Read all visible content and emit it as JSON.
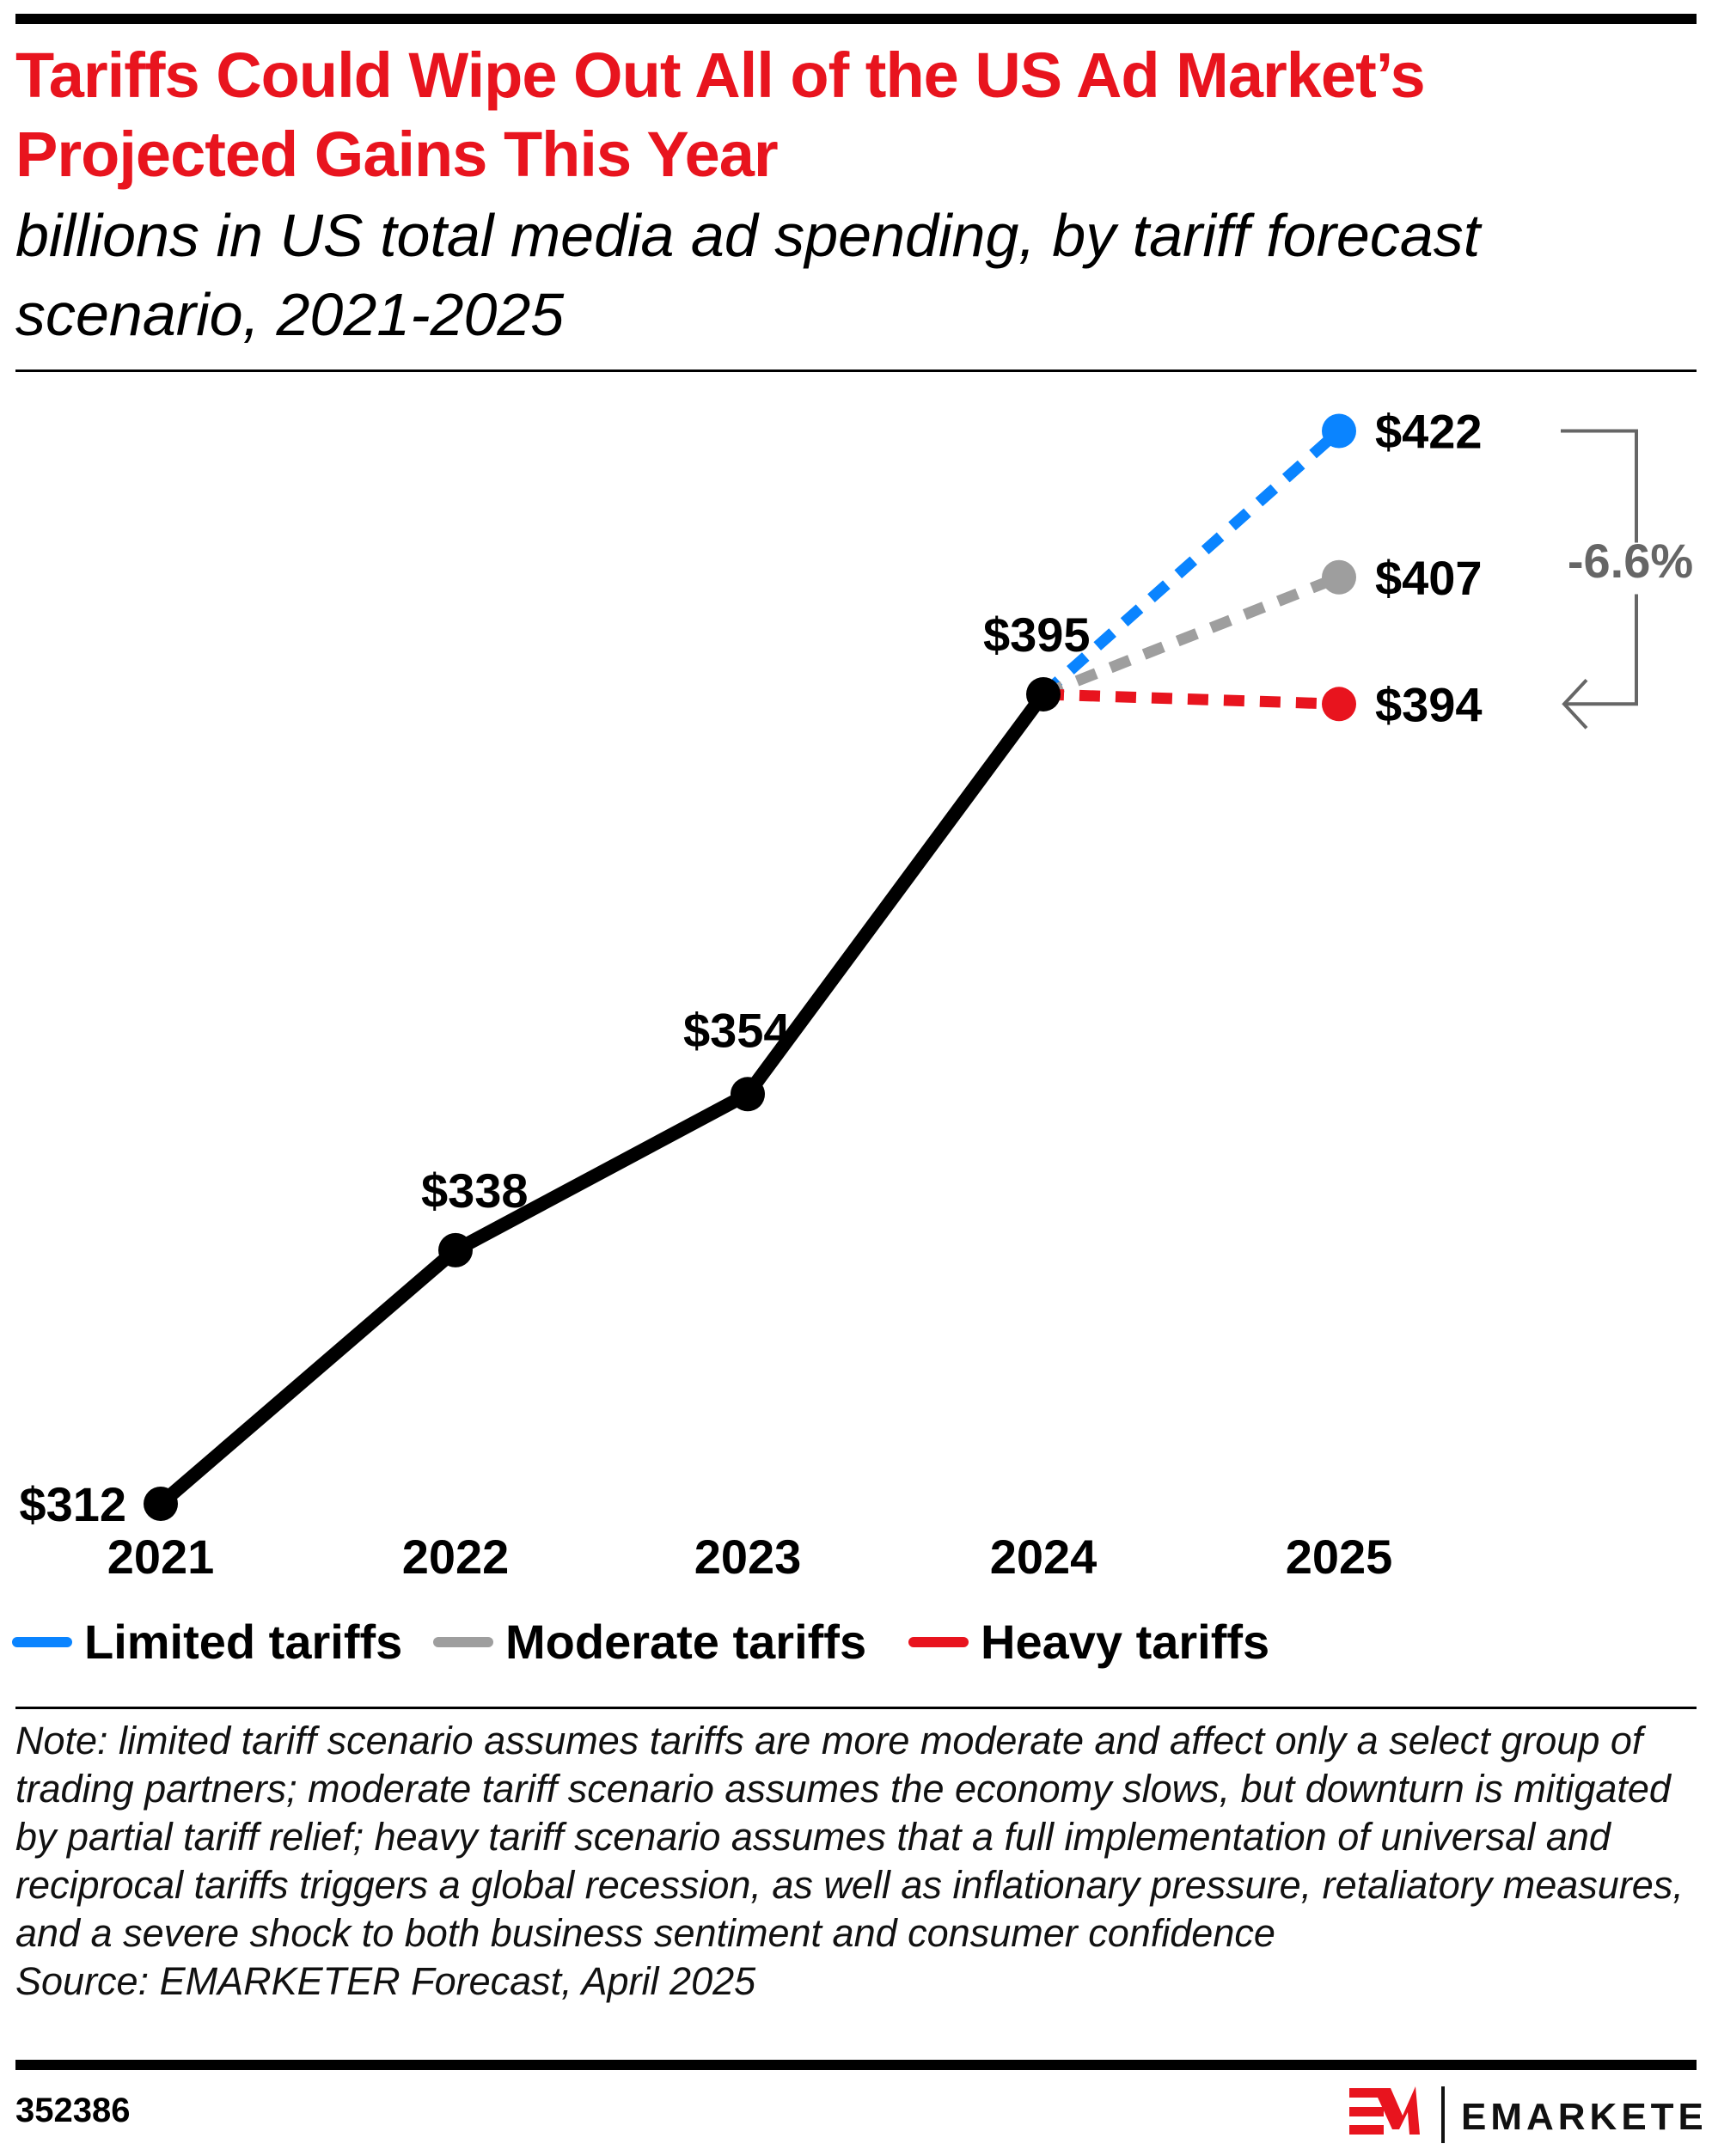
{
  "chart_data": {
    "type": "line",
    "title": "Tariffs Could Wipe Out All of the US Ad Market’s Projected Gains This Year",
    "subtitle": "billions in US total media ad spending, by tariff forecast scenario, 2021-2025",
    "categories": [
      "2021",
      "2022",
      "2023",
      "2024",
      "2025"
    ],
    "historical": {
      "x": [
        "2021",
        "2022",
        "2023",
        "2024"
      ],
      "values": [
        312,
        338,
        354,
        395
      ],
      "labels": [
        "$312",
        "$338",
        "$354",
        "$395"
      ],
      "color": "#000000"
    },
    "series": [
      {
        "name": "Limited tariffs",
        "x": [
          "2024",
          "2025"
        ],
        "values": [
          395,
          422
        ],
        "end_label": "$422",
        "color": "#0A84FF",
        "dashed": true
      },
      {
        "name": "Moderate tariffs",
        "x": [
          "2024",
          "2025"
        ],
        "values": [
          395,
          407
        ],
        "end_label": "$407",
        "color": "#9E9E9E",
        "dashed": true
      },
      {
        "name": "Heavy tariffs",
        "x": [
          "2024",
          "2025"
        ],
        "values": [
          395,
          394
        ],
        "end_label": "$394",
        "color": "#E8141E",
        "dashed": true
      }
    ],
    "annotation": {
      "text": "-6.6%",
      "from": "Limited tariffs",
      "to": "Heavy tariffs",
      "color": "#666666"
    },
    "grid": false,
    "y_axis_shown": false,
    "legend_placement": "bottom-left"
  },
  "title_color": "#E8141E",
  "note": "Note: limited tariff scenario assumes tariffs are more moderate and affect only a select group of trading partners; moderate tariff scenario assumes the economy slows, but downturn is mitigated by partial tariff relief; heavy tariff scenario assumes that a full implementation of universal and reciprocal tariffs triggers a global recession, as well as inflationary pressure, retaliatory measures, and a severe shock to both business sentiment and consumer confidence",
  "source": "Source: EMARKETER Forecast, April 2025",
  "chart_id": "352386",
  "logo": {
    "mark": "EM",
    "wordmark": "EMARKETER",
    "mark_color": "#E8141E"
  }
}
